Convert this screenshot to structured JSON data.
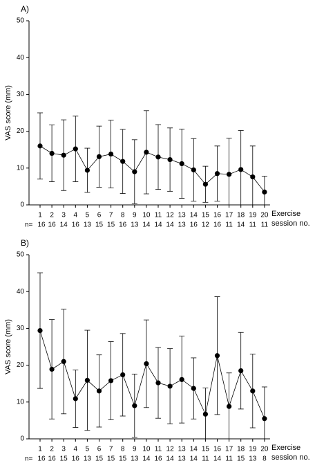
{
  "chart_data": [
    {
      "type": "errorbar-line",
      "panel_label": "A)",
      "y_label": "VAS score (mm)",
      "x_label_lines": [
        "Exercise",
        "session no."
      ],
      "n_label": "n=",
      "x": [
        1,
        2,
        3,
        4,
        5,
        6,
        7,
        8,
        9,
        10,
        11,
        12,
        13,
        14,
        15,
        16,
        17,
        18,
        19,
        20
      ],
      "n": [
        16,
        16,
        14,
        16,
        13,
        15,
        15,
        16,
        13,
        14,
        14,
        14,
        13,
        16,
        12,
        16,
        11,
        14,
        11,
        11
      ],
      "values": [
        16,
        14,
        13.5,
        15.2,
        9.4,
        13.1,
        13.8,
        11.8,
        9,
        14.3,
        13,
        12.3,
        11.2,
        9.5,
        5.6,
        8.5,
        8.3,
        9.6,
        7.6,
        3.5
      ],
      "errors": [
        9,
        7.7,
        9.6,
        8.9,
        6,
        8.3,
        9.2,
        8.7,
        8.7,
        11.3,
        8.8,
        8.6,
        9.4,
        8.5,
        4.9,
        7.5,
        9.8,
        10.6,
        8.4,
        4.3
      ],
      "color": "#000000",
      "ylim": [
        0,
        50
      ],
      "yticks": [
        0,
        10,
        20,
        30,
        40,
        50
      ]
    },
    {
      "type": "errorbar-line",
      "panel_label": "B)",
      "y_label": "VAS score (mm)",
      "x_label_lines": [
        "Exercise",
        "session no."
      ],
      "n_label": "n=",
      "x": [
        1,
        2,
        3,
        4,
        5,
        6,
        7,
        8,
        9,
        10,
        11,
        12,
        13,
        14,
        15,
        16,
        17,
        18,
        19,
        20
      ],
      "n": [
        16,
        16,
        15,
        16,
        13,
        15,
        15,
        15,
        13,
        14,
        16,
        14,
        13,
        14,
        11,
        14,
        11,
        15,
        13,
        8
      ],
      "values": [
        29.4,
        18.9,
        21,
        10.9,
        15.9,
        13,
        15.8,
        17.4,
        9,
        20.4,
        15.2,
        14.3,
        16.1,
        13.7,
        6.7,
        22.6,
        8.8,
        18.5,
        13,
        5.5
      ],
      "errors": [
        15.7,
        13.5,
        14.2,
        7.8,
        13.6,
        9.8,
        10.6,
        11.2,
        8.6,
        11.9,
        9.6,
        10.2,
        11.8,
        8.3,
        7.1,
        16,
        9.1,
        10.4,
        10,
        8.6
      ],
      "color": "#000000",
      "ylim": [
        0,
        50
      ],
      "yticks": [
        0,
        10,
        20,
        30,
        40,
        50
      ]
    }
  ]
}
